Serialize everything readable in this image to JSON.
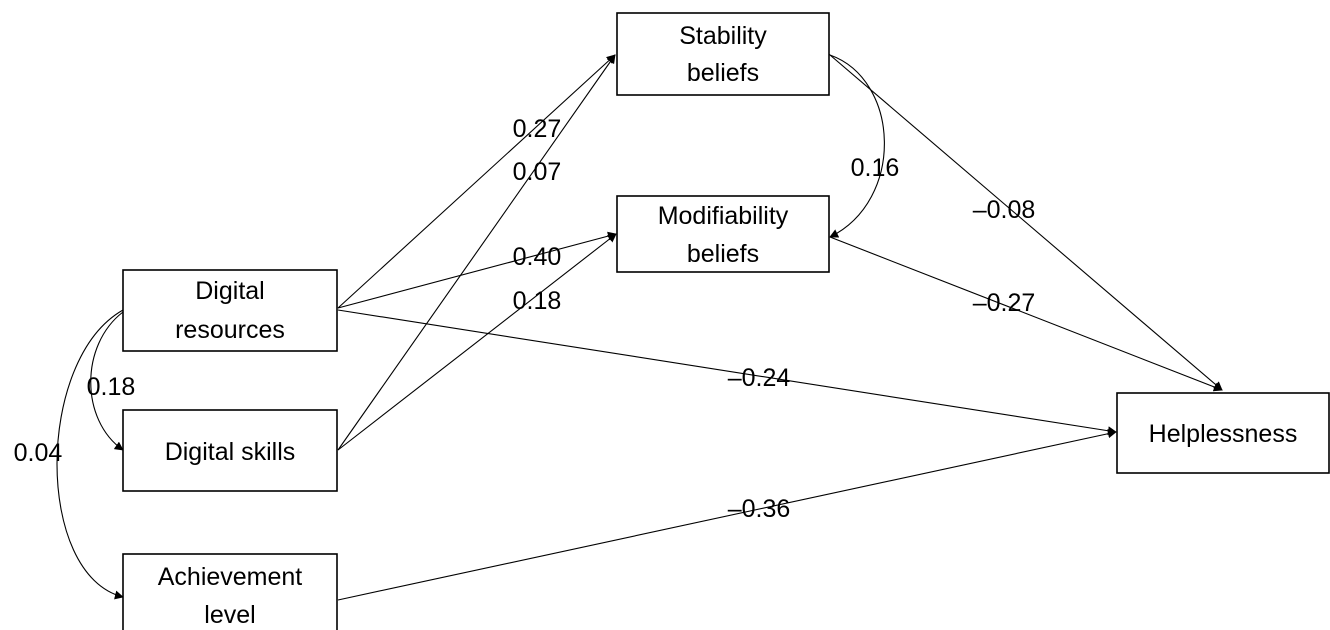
{
  "nodes": {
    "stability": {
      "line1": "Stability",
      "line2": "beliefs"
    },
    "modifiability": {
      "line1": "Modifiability",
      "line2": "beliefs"
    },
    "digital_resources": {
      "line1": "Digital",
      "line2": "resources"
    },
    "digital_skills": {
      "line1": "Digital skills"
    },
    "achievement": {
      "line1": "Achievement",
      "line2": "level"
    },
    "helplessness": {
      "line1": "Helplessness"
    }
  },
  "paths": {
    "resources_to_stability": "0.27",
    "skills_to_stability": "0.07",
    "resources_to_modifiability": "0.40",
    "skills_to_modifiability": "0.18",
    "stability_to_helplessness": "–0.08",
    "modifiability_to_helplessness": "–0.27",
    "resources_to_helplessness": "–0.24",
    "achievement_to_helplessness": "–0.36"
  },
  "covariances": {
    "stability_modifiability": "0.16",
    "resources_skills": "0.18",
    "resources_achievement": "0.04"
  }
}
